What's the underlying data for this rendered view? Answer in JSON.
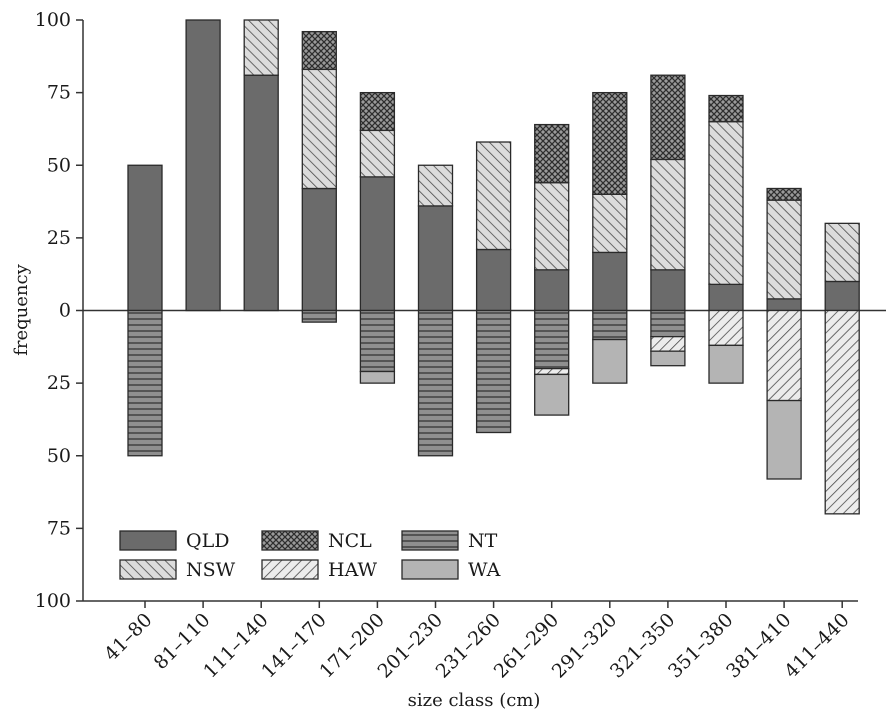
{
  "chart_data": {
    "type": "bar",
    "title": "",
    "xlabel": "size class (cm)",
    "ylabel": "frequency",
    "categories": [
      "41–80",
      "81–110",
      "111–140",
      "141–170",
      "171–200",
      "201–230",
      "231–260",
      "261–290",
      "291–320",
      "321–350",
      "351–380",
      "381–410",
      "411–440"
    ],
    "y_ticks": [
      "100",
      "75",
      "50",
      "25",
      "0",
      "25",
      "50",
      "75",
      "100"
    ],
    "ylim": [
      -100,
      100
    ],
    "grid": false,
    "legend_position": "bottom-left",
    "series": [
      {
        "name": "QLD",
        "pattern": "solid-dark",
        "fill": "#6b6b6b",
        "values": [
          50,
          100,
          81,
          42,
          46,
          36,
          21,
          14,
          20,
          14,
          9,
          4,
          10
        ]
      },
      {
        "name": "NSW",
        "pattern": "diagonal-up",
        "fill": "#dcdcdc",
        "values": [
          0,
          0,
          19,
          41,
          16,
          14,
          37,
          30,
          20,
          38,
          56,
          34,
          20
        ]
      },
      {
        "name": "NCL",
        "pattern": "crosshatch",
        "fill": "#8a8a8a",
        "values": [
          0,
          0,
          0,
          13,
          13,
          0,
          0,
          20,
          35,
          29,
          9,
          4,
          0
        ]
      },
      {
        "name": "NT",
        "pattern": "horizontal-lines",
        "fill": "#8a8a8a",
        "values": [
          -50,
          0,
          0,
          -4,
          -21,
          -50,
          -42,
          -20,
          -10,
          -9,
          0,
          0,
          0
        ]
      },
      {
        "name": "HAW",
        "pattern": "diagonal-down",
        "fill": "#e6e6e6",
        "values": [
          0,
          0,
          0,
          0,
          0,
          0,
          0,
          -2,
          0,
          -5,
          -12,
          -31,
          -70
        ]
      },
      {
        "name": "WA",
        "pattern": "solid-light",
        "fill": "#b4b4b4",
        "values": [
          0,
          0,
          0,
          0,
          -4,
          0,
          0,
          -14,
          -15,
          -5,
          -13,
          -27,
          0
        ]
      }
    ],
    "legend": {
      "rows": [
        [
          "QLD",
          "NCL",
          "NT"
        ],
        [
          "NSW",
          "HAW",
          "WA"
        ]
      ]
    }
  }
}
